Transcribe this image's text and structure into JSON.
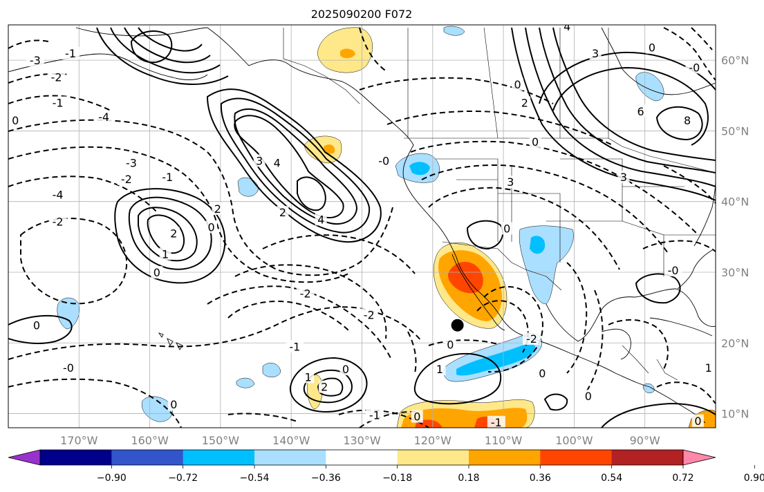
{
  "title": "2025090200 F072",
  "lon_ticks": [
    {
      "lon": -170,
      "label": "170°W"
    },
    {
      "lon": -160,
      "label": "160°W"
    },
    {
      "lon": -150,
      "label": "150°W"
    },
    {
      "lon": -140,
      "label": "140°W"
    },
    {
      "lon": -130,
      "label": "130°W"
    },
    {
      "lon": -120,
      "label": "120°W"
    },
    {
      "lon": -110,
      "label": "110°W"
    },
    {
      "lon": -100,
      "label": "100°W"
    },
    {
      "lon": -90,
      "label": "90°W"
    }
  ],
  "lat_ticks": [
    {
      "lat": 60,
      "label": "60°N"
    },
    {
      "lat": 50,
      "label": "50°N"
    },
    {
      "lat": 40,
      "label": "40°N"
    },
    {
      "lat": 30,
      "label": "30°N"
    },
    {
      "lat": 20,
      "label": "20°N"
    },
    {
      "lat": 10,
      "label": "10°N"
    }
  ],
  "extent": {
    "lon": [
      -180,
      -80
    ],
    "lat": [
      8,
      65
    ]
  },
  "marker": {
    "lon": -116.5,
    "lat": 22.5
  },
  "colorbar": {
    "colors": [
      "#9932cc",
      "#00008b",
      "#3355cc",
      "#00bfff",
      "#aadfff",
      "#ffffff",
      "#ffe88a",
      "#ffa500",
      "#ff4500",
      "#b22222",
      "#ff88aa"
    ],
    "tick_labels": [
      "−0.90",
      "−0.72",
      "−0.54",
      "−0.36",
      "−0.18",
      "0.18",
      "0.36",
      "0.54",
      "0.72",
      "0.90"
    ]
  },
  "contour_labels": [
    {
      "text": "-3",
      "lon": -176.2,
      "lat": 60.0
    },
    {
      "text": "-2",
      "lon": -173.2,
      "lat": 57.6
    },
    {
      "text": "-1",
      "lon": -173.0,
      "lat": 54.0
    },
    {
      "text": "0",
      "lon": -179.0,
      "lat": 51.5
    },
    {
      "text": "-3",
      "lon": -162.6,
      "lat": 45.5
    },
    {
      "text": "-2",
      "lon": -163.3,
      "lat": 43.2
    },
    {
      "text": "-1",
      "lon": -157.5,
      "lat": 43.5
    },
    {
      "text": "-4",
      "lon": -173.0,
      "lat": 41.0
    },
    {
      "text": "-2",
      "lon": -173.0,
      "lat": 37.2
    },
    {
      "text": "2",
      "lon": -156.6,
      "lat": 35.5
    },
    {
      "text": "1",
      "lon": -157.8,
      "lat": 32.6
    },
    {
      "text": "0",
      "lon": -159.0,
      "lat": 30.0
    },
    {
      "text": "0",
      "lon": -151.3,
      "lat": 36.4
    },
    {
      "text": "2",
      "lon": -150.4,
      "lat": 39.0
    },
    {
      "text": "3",
      "lon": -144.5,
      "lat": 45.8
    },
    {
      "text": "4",
      "lon": -142.0,
      "lat": 45.5
    },
    {
      "text": "2",
      "lon": -141.2,
      "lat": 38.5
    },
    {
      "text": "4",
      "lon": -135.8,
      "lat": 37.5
    },
    {
      "text": "-0",
      "lon": -126.9,
      "lat": 45.8
    },
    {
      "text": "-2",
      "lon": -138.0,
      "lat": 27.0
    },
    {
      "text": "-2",
      "lon": -129.0,
      "lat": 24.0
    },
    {
      "text": "-1",
      "lon": -139.5,
      "lat": 19.5
    },
    {
      "text": "-0",
      "lon": -171.5,
      "lat": 16.5
    },
    {
      "text": "0",
      "lon": -176.0,
      "lat": 22.5
    },
    {
      "text": "0",
      "lon": -156.6,
      "lat": 11.3
    },
    {
      "text": "0",
      "lon": -132.3,
      "lat": 16.3
    },
    {
      "text": "1",
      "lon": -137.6,
      "lat": 15.2
    },
    {
      "text": "2",
      "lon": -135.3,
      "lat": 13.8
    },
    {
      "text": "-1",
      "lon": -128.2,
      "lat": 9.8
    },
    {
      "text": "0",
      "lon": -122.2,
      "lat": 9.6
    },
    {
      "text": "-1",
      "lon": -111.0,
      "lat": 8.8
    },
    {
      "text": "0",
      "lon": -117.5,
      "lat": 19.8
    },
    {
      "text": "1",
      "lon": -119.0,
      "lat": 16.3
    },
    {
      "text": "-2",
      "lon": -106.0,
      "lat": 20.6
    },
    {
      "text": "0",
      "lon": -104.5,
      "lat": 15.7
    },
    {
      "text": "0",
      "lon": -98.0,
      "lat": 12.5
    },
    {
      "text": "0",
      "lon": -109.5,
      "lat": 36.2
    },
    {
      "text": "3",
      "lon": -109.0,
      "lat": 42.8
    },
    {
      "text": "3",
      "lon": -93.0,
      "lat": 43.5
    },
    {
      "text": "0",
      "lon": -105.5,
      "lat": 48.5
    },
    {
      "text": "2",
      "lon": -107.0,
      "lat": 54.0
    },
    {
      "text": "0",
      "lon": -108.0,
      "lat": 56.6
    },
    {
      "text": "3",
      "lon": -97.0,
      "lat": 61.0
    },
    {
      "text": "4",
      "lon": -101.0,
      "lat": 64.8
    },
    {
      "text": "6",
      "lon": -90.6,
      "lat": 52.8
    },
    {
      "text": "0",
      "lon": -89.0,
      "lat": 61.8
    },
    {
      "text": "8",
      "lon": -84.0,
      "lat": 51.5
    },
    {
      "text": "-0",
      "lon": -83.0,
      "lat": 59.0
    },
    {
      "text": "-0",
      "lon": -86.0,
      "lat": 30.3
    },
    {
      "text": "1",
      "lon": -81.0,
      "lat": 16.5
    },
    {
      "text": "0",
      "lon": -82.5,
      "lat": 9.0
    },
    {
      "text": "-4",
      "lon": -166.5,
      "lat": 52.0
    },
    {
      "text": "-1",
      "lon": -171.2,
      "lat": 61.0
    }
  ]
}
